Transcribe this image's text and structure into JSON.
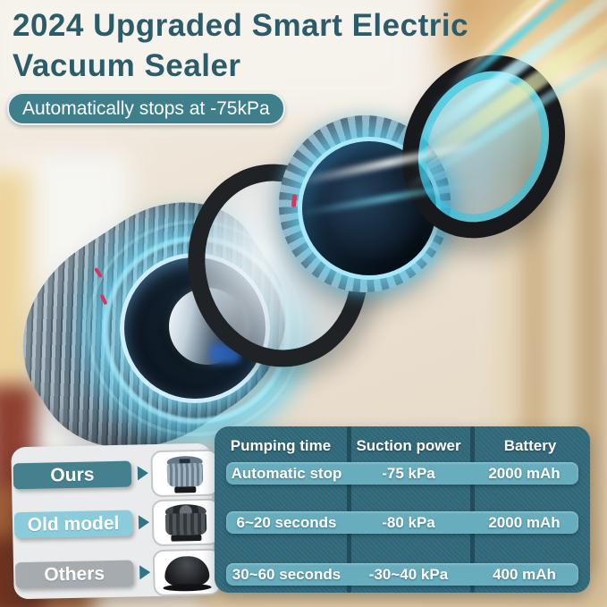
{
  "title": {
    "line1": "2024 Upgraded Smart Electric",
    "line2": "Vacuum Sealer"
  },
  "badge": {
    "text": "Automatically stops at -75kPa"
  },
  "legend": {
    "items": [
      {
        "label": "Ours"
      },
      {
        "label": "Old model"
      },
      {
        "label": "Others"
      }
    ]
  },
  "table": {
    "headers": [
      "Pumping time",
      "Suction power",
      "Battery"
    ],
    "rows": [
      [
        "Automatic stop",
        "-75 kPa",
        "2000 mAh"
      ],
      [
        "6~20 seconds",
        "-80 kPa",
        "2000 mAh"
      ],
      [
        "30~60 seconds",
        "-30~40 kPa",
        "400 mAh"
      ]
    ]
  },
  "colors": {
    "title_text": "#2c5c69",
    "badge_bg": "#3f7e8b",
    "table_bg": "#30697a",
    "table_row_highlight": "#67adbe",
    "pill_ours": "#44808e",
    "pill_old_model": "#8accdb",
    "pill_others": "#a6abb0",
    "glow_cyan": "#5fd7ff"
  }
}
